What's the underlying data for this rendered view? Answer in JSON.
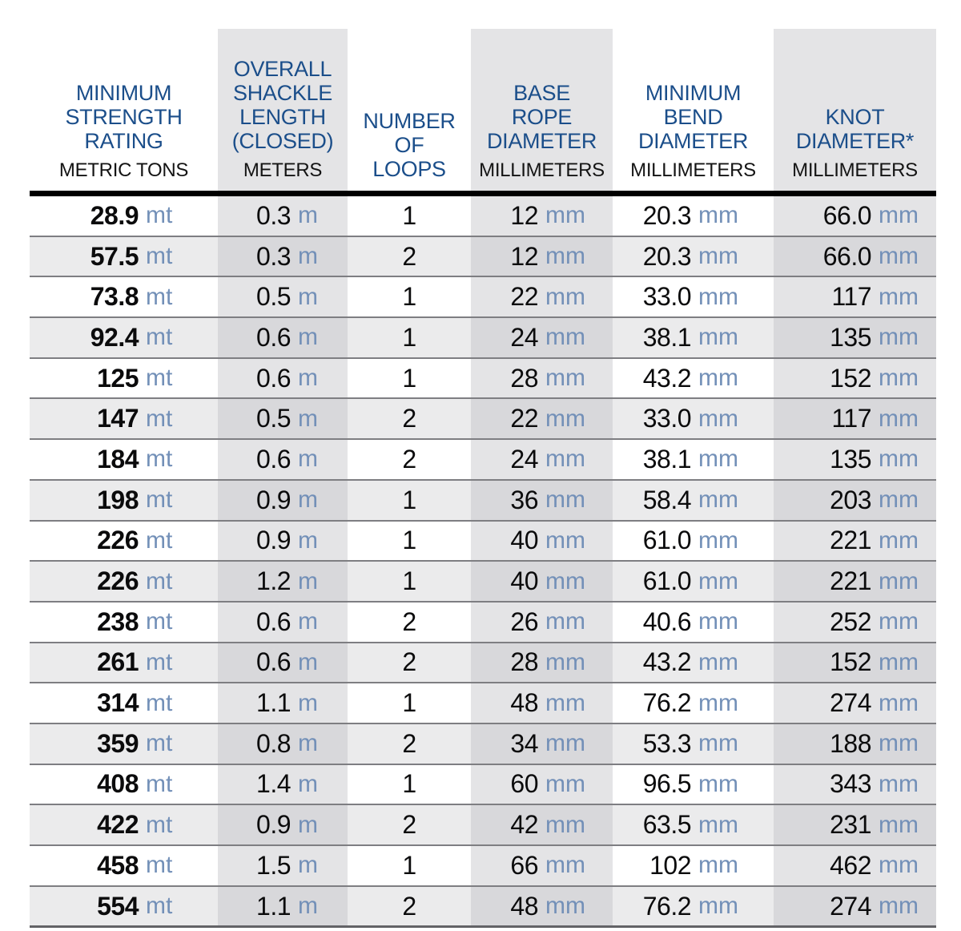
{
  "chart_data": {
    "type": "table",
    "columns": [
      {
        "title_lines": [
          "MINIMUM",
          "STRENGTH",
          "RATING"
        ],
        "unit_row": "METRIC TONS",
        "value_unit": "mt",
        "banded": false
      },
      {
        "title_lines": [
          "OVERALL",
          "SHACKLE",
          "LENGTH",
          "(CLOSED)"
        ],
        "unit_row": "METERS",
        "value_unit": "m",
        "banded": true
      },
      {
        "title_lines": [
          "NUMBER",
          "OF",
          "LOOPS"
        ],
        "unit_row": "",
        "value_unit": "",
        "banded": false
      },
      {
        "title_lines": [
          "BASE",
          "ROPE",
          "DIAMETER"
        ],
        "unit_row": "MILLIMETERS",
        "value_unit": "mm",
        "banded": true
      },
      {
        "title_lines": [
          "MINIMUM",
          "BEND",
          "DIAMETER"
        ],
        "unit_row": "MILLIMETERS",
        "value_unit": "mm",
        "banded": false
      },
      {
        "title_lines": [
          "KNOT",
          "DIAMETER*"
        ],
        "unit_row": "MILLIMETERS",
        "value_unit": "mm",
        "banded": true
      }
    ],
    "rows": [
      [
        "28.9",
        "0.3",
        "1",
        "12",
        "20.3",
        "66.0"
      ],
      [
        "57.5",
        "0.3",
        "2",
        "12",
        "20.3",
        "66.0"
      ],
      [
        "73.8",
        "0.5",
        "1",
        "22",
        "33.0",
        "117"
      ],
      [
        "92.4",
        "0.6",
        "1",
        "24",
        "38.1",
        "135"
      ],
      [
        "125",
        "0.6",
        "1",
        "28",
        "43.2",
        "152"
      ],
      [
        "147",
        "0.5",
        "2",
        "22",
        "33.0",
        "117"
      ],
      [
        "184",
        "0.6",
        "2",
        "24",
        "38.1",
        "135"
      ],
      [
        "198",
        "0.9",
        "1",
        "36",
        "58.4",
        "203"
      ],
      [
        "226",
        "0.9",
        "1",
        "40",
        "61.0",
        "221"
      ],
      [
        "226",
        "1.2",
        "1",
        "40",
        "61.0",
        "221"
      ],
      [
        "238",
        "0.6",
        "2",
        "26",
        "40.6",
        "252"
      ],
      [
        "261",
        "0.6",
        "2",
        "28",
        "43.2",
        "152"
      ],
      [
        "314",
        "1.1",
        "1",
        "48",
        "76.2",
        "274"
      ],
      [
        "359",
        "0.8",
        "2",
        "34",
        "53.3",
        "188"
      ],
      [
        "408",
        "1.4",
        "1",
        "60",
        "96.5",
        "343"
      ],
      [
        "422",
        "0.9",
        "2",
        "42",
        "63.5",
        "231"
      ],
      [
        "458",
        "1.5",
        "1",
        "66",
        "102",
        "462"
      ],
      [
        "554",
        "1.1",
        "2",
        "48",
        "76.2",
        "274"
      ]
    ]
  },
  "colors": {
    "header_blue": "#1b4e8a",
    "unit_blue": "#7390b8",
    "text_black": "#0b0b0c",
    "band_fill": "#e4e4e6",
    "even_row_fill": "#ebebec",
    "even_row_band_fill": "#d8d8db",
    "separator_gray": "#7e7e82",
    "header_rule_black": "#000000"
  }
}
